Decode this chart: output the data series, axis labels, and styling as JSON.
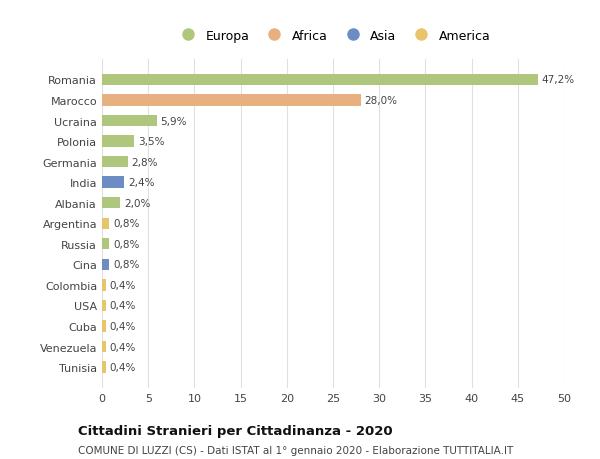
{
  "categories": [
    "Romania",
    "Marocco",
    "Ucraina",
    "Polonia",
    "Germania",
    "India",
    "Albania",
    "Argentina",
    "Russia",
    "Cina",
    "Colombia",
    "USA",
    "Cuba",
    "Venezuela",
    "Tunisia"
  ],
  "values": [
    47.2,
    28.0,
    5.9,
    3.5,
    2.8,
    2.4,
    2.0,
    0.8,
    0.8,
    0.8,
    0.4,
    0.4,
    0.4,
    0.4,
    0.4
  ],
  "labels": [
    "47,2%",
    "28,0%",
    "5,9%",
    "3,5%",
    "2,8%",
    "2,4%",
    "2,0%",
    "0,8%",
    "0,8%",
    "0,8%",
    "0,4%",
    "0,4%",
    "0,4%",
    "0,4%",
    "0,4%"
  ],
  "colors": [
    "#aec77d",
    "#e8b080",
    "#aec77d",
    "#aec77d",
    "#aec77d",
    "#6b8dc4",
    "#aec77d",
    "#e8c46a",
    "#aec77d",
    "#6b8dc4",
    "#e8c46a",
    "#e8c46a",
    "#e8c46a",
    "#e8c46a",
    "#e8c46a"
  ],
  "legend_labels": [
    "Europa",
    "Africa",
    "Asia",
    "America"
  ],
  "legend_colors": [
    "#aec77d",
    "#e8b080",
    "#6b8dc4",
    "#e8c46a"
  ],
  "title": "Cittadini Stranieri per Cittadinanza - 2020",
  "subtitle": "COMUNE DI LUZZI (CS) - Dati ISTAT al 1° gennaio 2020 - Elaborazione TUTTITALIA.IT",
  "xlim": [
    0,
    50
  ],
  "xticks": [
    0,
    5,
    10,
    15,
    20,
    25,
    30,
    35,
    40,
    45,
    50
  ],
  "background_color": "#ffffff",
  "grid_color": "#e0e0e0"
}
